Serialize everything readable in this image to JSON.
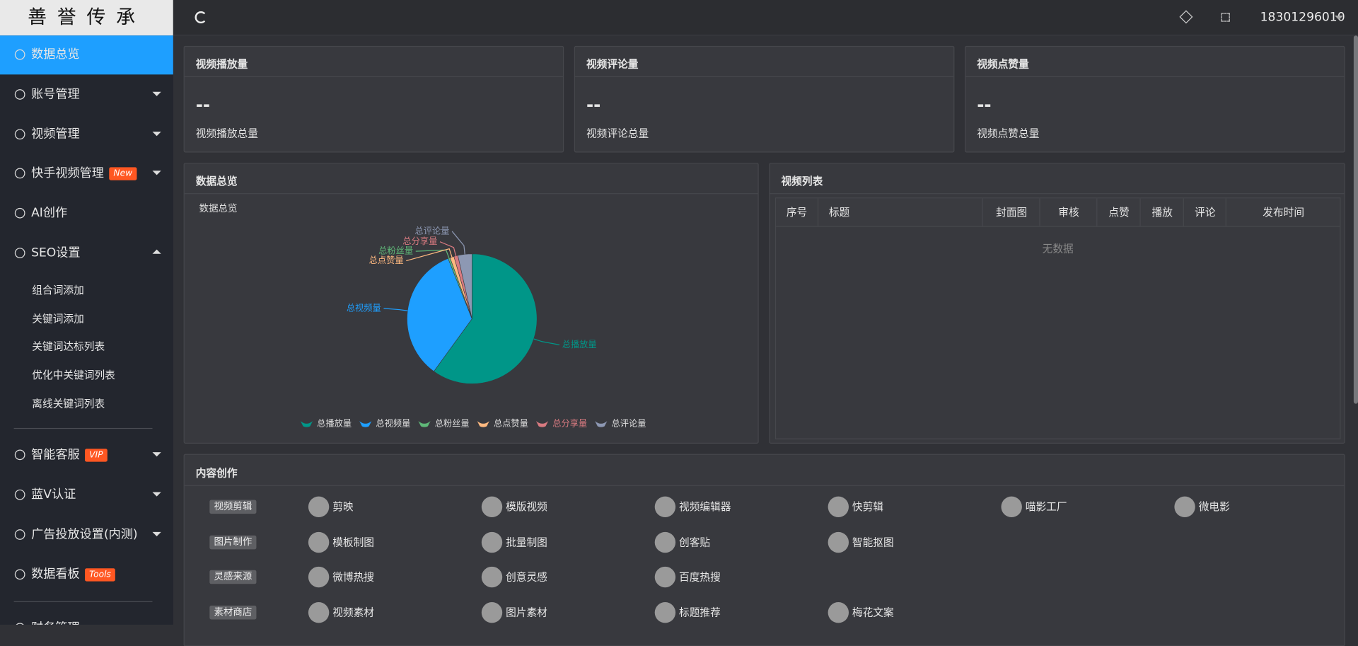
{
  "logo": "善誉传承",
  "header": {
    "user": "18301296010"
  },
  "menu": [
    {
      "label": "数据总览"
    },
    {
      "label": "账号管理"
    },
    {
      "label": "视频管理"
    },
    {
      "label": "快手视频管理",
      "badge": "New"
    },
    {
      "label": "AI创作"
    },
    {
      "label": "SEO设置"
    },
    {
      "label": "组合词添加"
    },
    {
      "label": "关键词添加"
    },
    {
      "label": "关键词达标列表"
    },
    {
      "label": "优化中关键词列表"
    },
    {
      "label": "离线关键词列表"
    },
    {
      "label": "智能客服",
      "badge": "VIP"
    },
    {
      "label": "蓝V认证"
    },
    {
      "label": "广告投放设置(内测)"
    },
    {
      "label": "数据看板",
      "badge": "Tools"
    },
    {
      "label": "财务管理"
    }
  ],
  "cards": [
    {
      "title": "视频播放量",
      "value": "--",
      "note": "视频播放总量"
    },
    {
      "title": "视频评论量",
      "value": "--",
      "note": "视频评论总量"
    },
    {
      "title": "视频点赞量",
      "value": "--",
      "note": "视频点赞总量"
    }
  ],
  "panels": {
    "overview": "数据总览",
    "list": "视频列表",
    "content": "内容创作"
  },
  "table": {
    "columns": [
      "序号",
      "标题",
      "封面图",
      "审核",
      "点赞",
      "播放",
      "评论",
      "发布时间"
    ],
    "empty": "无数据"
  },
  "chart_data": {
    "type": "pie",
    "title": "数据总览",
    "categories": [
      "总播放量",
      "总视频量",
      "总粉丝量",
      "总点赞量",
      "总分享量",
      "总评论量"
    ],
    "values": [
      60,
      34,
      0.5,
      1,
      1,
      3.5
    ],
    "colors": [
      "#009688",
      "#1e9fff",
      "#5fb878",
      "#ffb980",
      "#d87a80",
      "#8d98b3"
    ],
    "legend": "bottom"
  },
  "content": [
    {
      "tag": "视频剪辑",
      "items": [
        "剪映",
        "模版视频",
        "视频编辑器",
        "快剪辑",
        "喵影工厂",
        "微电影"
      ]
    },
    {
      "tag": "图片制作",
      "items": [
        "模板制图",
        "批量制图",
        "创客贴",
        "智能抠图"
      ]
    },
    {
      "tag": "灵感来源",
      "items": [
        "微博热搜",
        "创意灵感",
        "百度热搜"
      ]
    },
    {
      "tag": "素材商店",
      "items": [
        "视频素材",
        "图片素材",
        "标题推荐",
        "梅花文案"
      ]
    }
  ]
}
